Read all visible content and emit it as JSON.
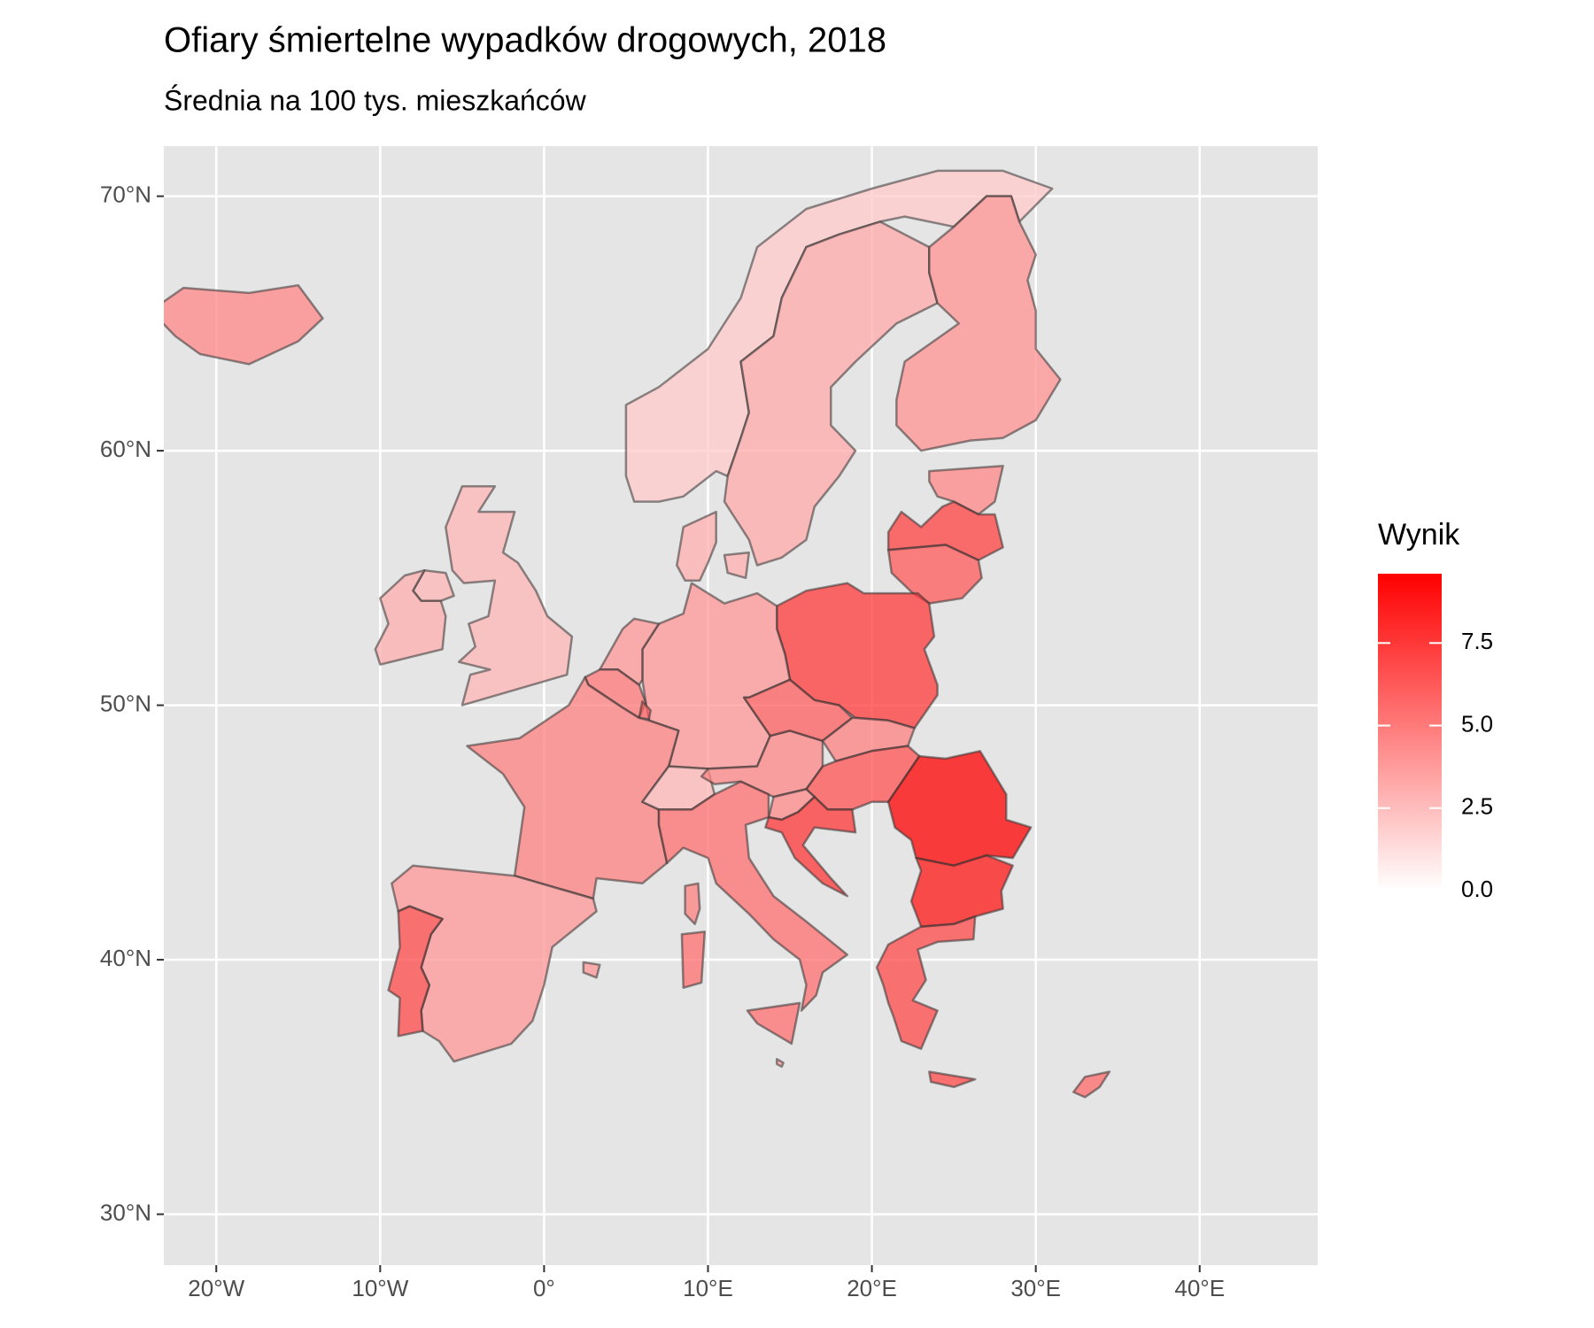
{
  "chart_data": {
    "type": "map",
    "title": "Ofiary śmiertelne wypadków drogowych, 2018",
    "subtitle": "Średnia na 100 tys. mieszkańców",
    "values": [
      4.5,
      2.0,
      3.2,
      4.1,
      4.5,
      7.2,
      6.2,
      7.5,
      3.9,
      3.0,
      3.9,
      5.2,
      6.0,
      4.8,
      2.7,
      4.6,
      6.1,
      4.8,
      6.5,
      4.4,
      7.6,
      9.6,
      8.8,
      6.9,
      5.5,
      3.9,
      6.9,
      2.8,
      3.1,
      5.6,
      3.6
    ],
    "xlim": [
      -23.2,
      47.2
    ],
    "ylim": [
      28.0,
      71.97
    ],
    "xticks": [
      {
        "value": -20,
        "label": "20°W"
      },
      {
        "value": -10,
        "label": "10°W"
      },
      {
        "value": 0,
        "label": "0°"
      },
      {
        "value": 10,
        "label": "10°E"
      },
      {
        "value": 20,
        "label": "20°E"
      },
      {
        "value": 30,
        "label": "30°E"
      },
      {
        "value": 40,
        "label": "40°E"
      }
    ],
    "yticks": [
      {
        "value": 30,
        "label": "30°N"
      },
      {
        "value": 40,
        "label": "40°N"
      },
      {
        "value": 50,
        "label": "50°N"
      },
      {
        "value": 60,
        "label": "60°N"
      },
      {
        "value": 70,
        "label": "70°N"
      }
    ],
    "grid": true,
    "legend": {
      "title": "Wynik",
      "position": "right"
    },
    "colorscale": {
      "lim": [
        0,
        9.6
      ],
      "colors": [
        "#ffffff",
        "#ff0000"
      ],
      "ticks": [
        {
          "value": 0,
          "label": "0.0"
        },
        2.5,
        {
          "value": 5,
          "label": "5.0"
        },
        7.5
      ]
    }
  }
}
